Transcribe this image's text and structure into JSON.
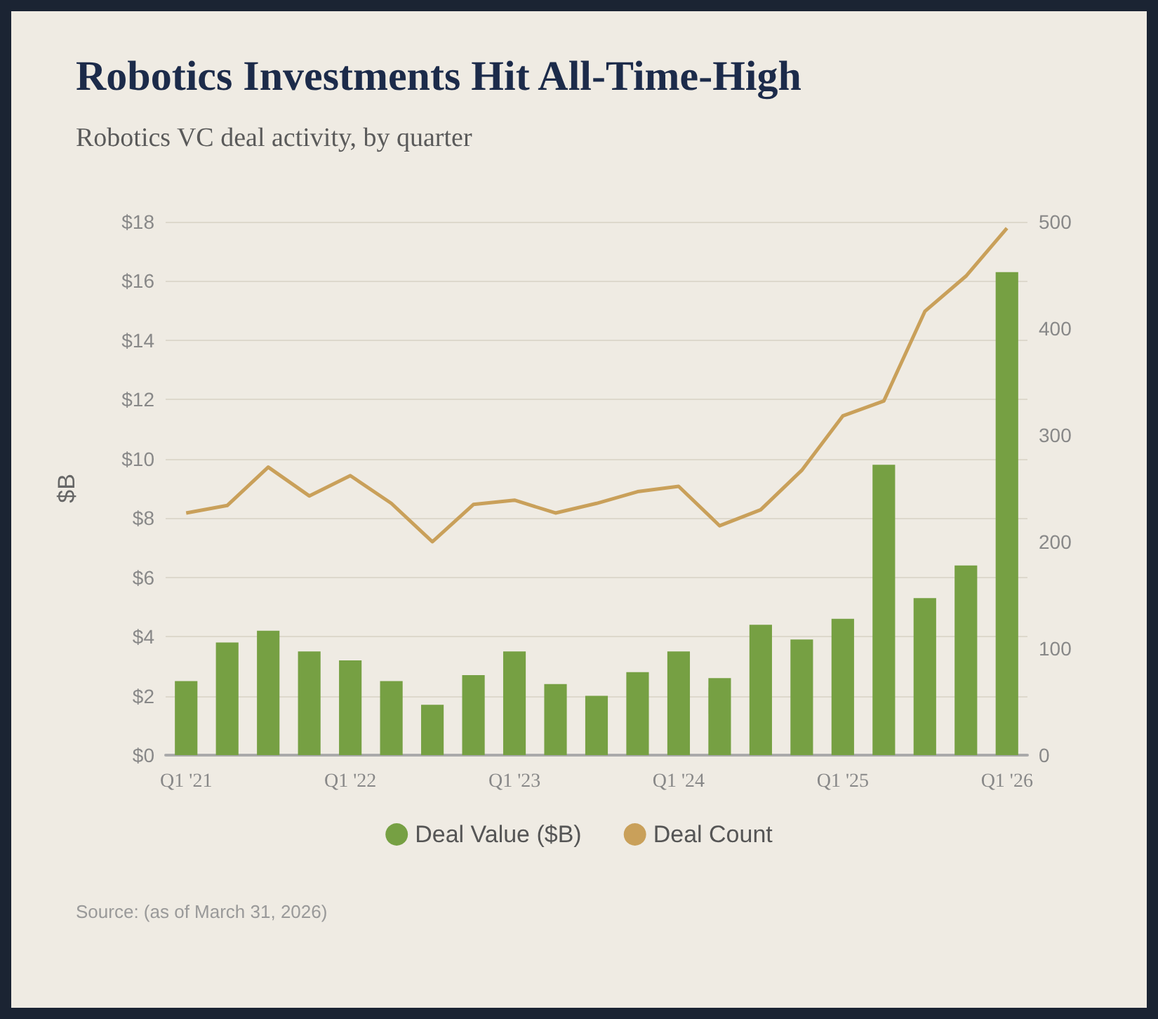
{
  "chart_data": {
    "type": "bar",
    "title": "Robotics Investments Hit All-Time-High",
    "subtitle": "Robotics VC deal activity, by quarter",
    "ylabel": "$B",
    "categories": [
      "Q1 '21",
      null,
      null,
      null,
      "Q1 '22",
      null,
      null,
      null,
      "Q1 '23",
      null,
      null,
      null,
      "Q1 '24",
      null,
      null,
      null,
      "Q1 '25",
      null,
      null,
      null,
      "Q1 '26"
    ],
    "series": [
      {
        "name": "Deal Value ($B)",
        "color": "#76a043",
        "values": [
          2.5,
          3.8,
          4.2,
          3.5,
          3.2,
          2.5,
          1.7,
          2.7,
          3.5,
          2.4,
          2.0,
          2.8,
          3.5,
          2.6,
          4.4,
          3.9,
          4.6,
          9.8,
          5.3,
          6.4,
          16.3
        ]
      },
      {
        "name": "Deal Count",
        "type": "line",
        "axis": "y2",
        "color": "#c9a05a",
        "marker": "none",
        "values": [
          227,
          234,
          270,
          243,
          262,
          236,
          200,
          235,
          239,
          227,
          236,
          247,
          252,
          215,
          230,
          267,
          318,
          332,
          416,
          449,
          494
        ]
      }
    ],
    "ylim": [
      0,
      18
    ],
    "yticks": [
      {
        "value": 0,
        "label": "$0"
      },
      {
        "value": 2,
        "label": "$2"
      },
      {
        "value": 4,
        "label": "$4"
      },
      {
        "value": 6,
        "label": "$6"
      },
      {
        "value": 8,
        "label": "$8"
      },
      {
        "value": 10,
        "label": "$10"
      },
      {
        "value": 12,
        "label": "$12"
      },
      {
        "value": 14,
        "label": "$14"
      },
      {
        "value": 16,
        "label": "$16"
      },
      {
        "value": 18,
        "label": "$18"
      }
    ],
    "y2lim": [
      0,
      500
    ],
    "y2ticks": [
      0,
      100,
      200,
      300,
      400,
      500
    ],
    "grid": "y",
    "legend": "bottom",
    "annotations": [
      "Source: (as of March 31, 2026)"
    ]
  }
}
